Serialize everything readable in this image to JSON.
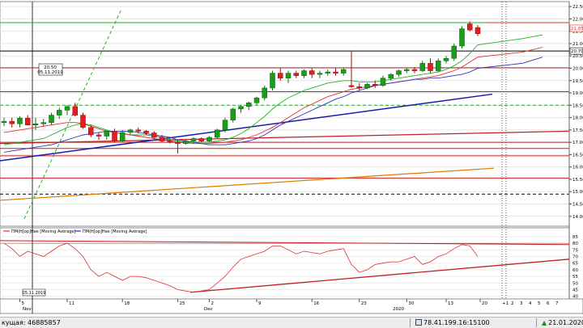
{
  "chart_data": [
    {
      "type": "candlestick",
      "title": "",
      "price_axis": {
        "range": [
          13.6,
          22.7
        ],
        "ticks": [
          "22.50",
          "22.00",
          "21.50",
          "21.00",
          "20.50",
          "20.00",
          "19.50",
          "19.00",
          "18.50",
          "18.00",
          "17.50",
          "17.00",
          "16.50",
          "16.00",
          "15.50",
          "15.00",
          "14.50",
          "14.00"
        ],
        "tick_values": [
          22.5,
          22.0,
          21.5,
          21.0,
          20.5,
          20.0,
          19.5,
          19.0,
          18.5,
          18.0,
          17.5,
          17.0,
          16.5,
          16.0,
          15.5,
          15.0,
          14.5,
          14.0
        ],
        "right_tag_red": "21.85",
        "right_tag_black": "20.70"
      },
      "crosshair_tooltip": {
        "value": "20.50",
        "date": "05.11.2019"
      },
      "candles": [
        {
          "o": 17.8,
          "h": 18.0,
          "l": 17.65,
          "c": 17.85
        },
        {
          "o": 17.85,
          "h": 18.0,
          "l": 17.6,
          "c": 17.75
        },
        {
          "o": 17.75,
          "h": 18.05,
          "l": 17.6,
          "c": 17.98
        },
        {
          "o": 17.98,
          "h": 18.1,
          "l": 17.7,
          "c": 17.7
        },
        {
          "o": 17.7,
          "h": 18.0,
          "l": 17.5,
          "c": 17.75
        },
        {
          "o": 17.75,
          "h": 17.95,
          "l": 17.65,
          "c": 17.8
        },
        {
          "o": 17.8,
          "h": 18.2,
          "l": 17.7,
          "c": 18.1
        },
        {
          "o": 18.1,
          "h": 18.4,
          "l": 17.95,
          "c": 18.3
        },
        {
          "o": 18.3,
          "h": 18.5,
          "l": 18.1,
          "c": 18.45
        },
        {
          "o": 18.45,
          "h": 18.6,
          "l": 18.05,
          "c": 18.1
        },
        {
          "o": 18.1,
          "h": 18.2,
          "l": 17.55,
          "c": 17.6
        },
        {
          "o": 17.6,
          "h": 17.7,
          "l": 17.2,
          "c": 17.3
        },
        {
          "o": 17.3,
          "h": 17.4,
          "l": 17.1,
          "c": 17.25
        },
        {
          "o": 17.25,
          "h": 17.5,
          "l": 17.1,
          "c": 17.45
        },
        {
          "o": 17.45,
          "h": 17.55,
          "l": 17.0,
          "c": 17.05
        },
        {
          "o": 17.05,
          "h": 17.5,
          "l": 17.0,
          "c": 17.4
        },
        {
          "o": 17.4,
          "h": 17.55,
          "l": 17.3,
          "c": 17.5
        },
        {
          "o": 17.5,
          "h": 17.6,
          "l": 17.35,
          "c": 17.45
        },
        {
          "o": 17.45,
          "h": 17.5,
          "l": 17.3,
          "c": 17.38
        },
        {
          "o": 17.38,
          "h": 17.45,
          "l": 17.15,
          "c": 17.2
        },
        {
          "o": 17.2,
          "h": 17.3,
          "l": 17.0,
          "c": 17.05
        },
        {
          "o": 17.05,
          "h": 17.15,
          "l": 16.95,
          "c": 17.0
        },
        {
          "o": 17.0,
          "h": 17.1,
          "l": 16.55,
          "c": 16.95
        },
        {
          "o": 16.95,
          "h": 17.1,
          "l": 16.9,
          "c": 17.05
        },
        {
          "o": 17.05,
          "h": 17.2,
          "l": 16.95,
          "c": 17.15
        },
        {
          "o": 17.15,
          "h": 17.2,
          "l": 17.0,
          "c": 17.05
        },
        {
          "o": 17.05,
          "h": 17.25,
          "l": 17.0,
          "c": 17.2
        },
        {
          "o": 17.2,
          "h": 17.55,
          "l": 17.15,
          "c": 17.5
        },
        {
          "o": 17.5,
          "h": 18.0,
          "l": 17.4,
          "c": 17.9
        },
        {
          "o": 17.9,
          "h": 18.4,
          "l": 17.8,
          "c": 18.35
        },
        {
          "o": 18.35,
          "h": 18.5,
          "l": 18.2,
          "c": 18.45
        },
        {
          "o": 18.45,
          "h": 18.65,
          "l": 18.3,
          "c": 18.6
        },
        {
          "o": 18.6,
          "h": 18.85,
          "l": 18.5,
          "c": 18.8
        },
        {
          "o": 18.8,
          "h": 19.3,
          "l": 18.7,
          "c": 19.2
        },
        {
          "o": 19.2,
          "h": 19.9,
          "l": 19.1,
          "c": 19.8
        },
        {
          "o": 19.8,
          "h": 20.0,
          "l": 19.5,
          "c": 19.6
        },
        {
          "o": 19.6,
          "h": 19.9,
          "l": 19.4,
          "c": 19.8
        },
        {
          "o": 19.8,
          "h": 19.9,
          "l": 19.6,
          "c": 19.7
        },
        {
          "o": 19.7,
          "h": 19.95,
          "l": 19.6,
          "c": 19.9
        },
        {
          "o": 19.9,
          "h": 20.0,
          "l": 19.6,
          "c": 19.75
        },
        {
          "o": 19.75,
          "h": 19.9,
          "l": 19.6,
          "c": 19.8
        },
        {
          "o": 19.8,
          "h": 19.95,
          "l": 19.7,
          "c": 19.85
        },
        {
          "o": 19.85,
          "h": 20.0,
          "l": 19.7,
          "c": 19.8
        },
        {
          "o": 19.8,
          "h": 20.0,
          "l": 19.7,
          "c": 19.95
        },
        {
          "o": 19.3,
          "h": 20.7,
          "l": 19.2,
          "c": 19.25
        },
        {
          "o": 19.25,
          "h": 19.4,
          "l": 19.1,
          "c": 19.2
        },
        {
          "o": 19.2,
          "h": 19.4,
          "l": 19.15,
          "c": 19.35
        },
        {
          "o": 19.35,
          "h": 19.5,
          "l": 19.2,
          "c": 19.3
        },
        {
          "o": 19.3,
          "h": 19.7,
          "l": 19.25,
          "c": 19.6
        },
        {
          "o": 19.6,
          "h": 19.8,
          "l": 19.5,
          "c": 19.75
        },
        {
          "o": 19.75,
          "h": 19.95,
          "l": 19.65,
          "c": 19.9
        },
        {
          "o": 19.9,
          "h": 20.0,
          "l": 19.8,
          "c": 19.95
        },
        {
          "o": 19.95,
          "h": 20.05,
          "l": 19.8,
          "c": 19.9
        },
        {
          "o": 19.9,
          "h": 20.3,
          "l": 19.85,
          "c": 20.2
        },
        {
          "o": 20.2,
          "h": 20.4,
          "l": 19.8,
          "c": 19.9
        },
        {
          "o": 19.9,
          "h": 20.4,
          "l": 19.85,
          "c": 20.3
        },
        {
          "o": 20.3,
          "h": 20.5,
          "l": 20.2,
          "c": 20.4
        },
        {
          "o": 20.4,
          "h": 21.0,
          "l": 20.3,
          "c": 20.9
        },
        {
          "o": 20.9,
          "h": 21.7,
          "l": 20.8,
          "c": 21.6
        },
        {
          "o": 21.8,
          "h": 21.9,
          "l": 21.5,
          "c": 21.55
        },
        {
          "o": 21.65,
          "h": 21.75,
          "l": 21.3,
          "c": 21.4
        }
      ],
      "moving_averages": [
        {
          "color": "#1db31d",
          "values": [
            16.9,
            16.95,
            17.0,
            17.05,
            17.1,
            17.15,
            17.3,
            17.45,
            17.6,
            17.7,
            17.75,
            17.7,
            17.6,
            17.5,
            17.4,
            17.35,
            17.3,
            17.3,
            17.3,
            17.25,
            17.2,
            17.1,
            17.05,
            17.0,
            17.0,
            17.0,
            17.0,
            17.05,
            17.1,
            17.2,
            17.35,
            17.55,
            17.8,
            18.05,
            18.35,
            18.6,
            18.8,
            18.95,
            19.1,
            19.2,
            19.3,
            19.4,
            19.45,
            19.5,
            19.5,
            19.45,
            19.45,
            19.45,
            19.5,
            19.55,
            19.6,
            19.65,
            19.7,
            19.75,
            19.8,
            19.85,
            19.95,
            20.1,
            20.3,
            20.6,
            20.95,
            21.2,
            21.35
          ]
        },
        {
          "color": "#e03030",
          "values": [
            17.4,
            17.45,
            17.5,
            17.55,
            17.6,
            17.65,
            17.7,
            17.75,
            17.8,
            17.8,
            17.75,
            17.65,
            17.55,
            17.45,
            17.4,
            17.35,
            17.3,
            17.25,
            17.2,
            17.15,
            17.1,
            17.05,
            17.0,
            16.98,
            16.95,
            16.95,
            16.95,
            16.98,
            17.0,
            17.05,
            17.1,
            17.2,
            17.3,
            17.45,
            17.6,
            17.8,
            18.0,
            18.2,
            18.4,
            18.55,
            18.7,
            18.85,
            18.95,
            19.05,
            19.15,
            19.2,
            19.25,
            19.3,
            19.35,
            19.4,
            19.45,
            19.5,
            19.55,
            19.6,
            19.65,
            19.7,
            19.8,
            19.9,
            20.05,
            20.25,
            20.45,
            20.65,
            20.85
          ]
        },
        {
          "color": "#3030c0",
          "values": [
            16.6,
            16.65,
            16.7,
            16.75,
            16.8,
            16.85,
            16.9,
            17.0,
            17.1,
            17.2,
            17.3,
            17.35,
            17.4,
            17.45,
            17.45,
            17.45,
            17.45,
            17.4,
            17.35,
            17.3,
            17.25,
            17.2,
            17.1,
            17.05,
            17.0,
            16.95,
            16.9,
            16.9,
            16.9,
            16.95,
            17.0,
            17.05,
            17.15,
            17.3,
            17.5,
            17.7,
            17.85,
            18.0,
            18.15,
            18.3,
            18.45,
            18.6,
            18.75,
            18.85,
            19.0,
            19.1,
            19.2,
            19.3,
            19.35,
            19.4,
            19.45,
            19.5,
            19.55,
            19.55,
            19.6,
            19.6,
            19.65,
            19.7,
            19.75,
            19.85,
            20.0,
            20.2,
            20.45
          ]
        }
      ],
      "x_axis": {
        "months": [
          "Nov",
          "Dec",
          "2020"
        ],
        "day_ticks": [
          "5",
          "11",
          "18",
          "25",
          "2",
          "9",
          "16",
          "23",
          "30",
          "13",
          "20"
        ],
        "forward_ticks": [
          "+1",
          "2",
          "3",
          "4",
          "5",
          "6",
          "7"
        ]
      }
    },
    {
      "type": "line",
      "title": "",
      "y_ticks": [
        "85",
        "80",
        "75",
        "70",
        "65",
        "60",
        "55",
        "50",
        "45",
        "40"
      ],
      "y_tick_values": [
        85,
        80,
        75,
        70,
        65,
        60,
        55,
        50,
        45,
        40
      ],
      "range": [
        38,
        88
      ],
      "legend": [
        {
          "label": "ПМ(Н[ор]Нак [Moving Average]",
          "color": "#e03030"
        },
        {
          "label": "ПМ(Н[ор]Нак [Moving Average]",
          "color": "#3030c0"
        }
      ],
      "crosshair_date": "05.11.2019",
      "series": [
        {
          "color": "#e03030",
          "values": [
            80,
            76,
            70,
            74,
            72,
            70,
            74,
            78,
            80,
            76,
            70,
            60,
            55,
            58,
            55,
            52,
            55,
            55,
            54,
            52,
            50,
            48,
            45,
            44,
            43,
            44,
            45,
            50,
            55,
            62,
            68,
            70,
            72,
            74,
            78,
            78,
            75,
            72,
            74,
            73,
            72,
            74,
            75,
            76,
            64,
            58,
            60,
            64,
            65,
            66,
            66,
            68,
            70,
            64,
            66,
            70,
            72,
            76,
            79,
            78,
            70
          ]
        }
      ]
    }
  ],
  "status_bar": {
    "left_label": "кущая: 46885857",
    "mid_label": "78.41.199.16:15100",
    "right_label": "21.01.2020",
    "net_icon": "network-icon",
    "up_icon": "arrow-up-icon"
  }
}
